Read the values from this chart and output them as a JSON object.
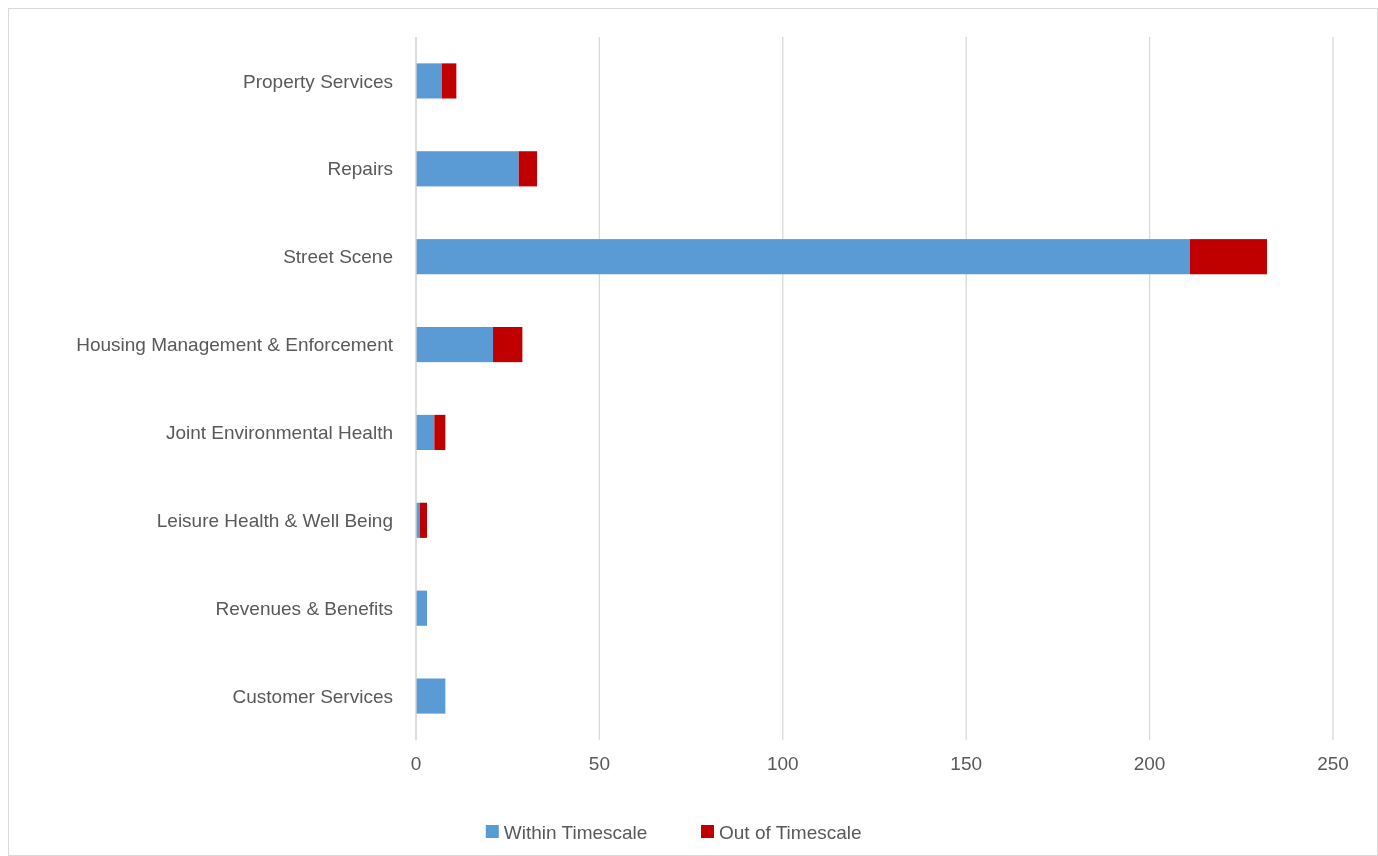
{
  "chart_data": {
    "type": "bar",
    "orientation": "horizontal",
    "stacked": true,
    "categories": [
      "Property Services",
      "Repairs",
      "Street Scene",
      "Housing Management & Enforcement",
      "Joint Environmental Health",
      "Leisure Health & Well Being",
      "Revenues & Benefits",
      "Customer Services"
    ],
    "series": [
      {
        "name": "Within Timescale",
        "color": "#5b9bd5",
        "values": [
          7,
          28,
          211,
          21,
          5,
          1,
          3,
          8
        ]
      },
      {
        "name": "Out of Timescale",
        "color": "#c00000",
        "values": [
          4,
          5,
          21,
          8,
          3,
          2,
          0,
          0
        ]
      }
    ],
    "xlim": [
      0,
      250
    ],
    "xticks": [
      0,
      50,
      100,
      150,
      200,
      250
    ],
    "grid": "x",
    "legend": "bottom"
  }
}
